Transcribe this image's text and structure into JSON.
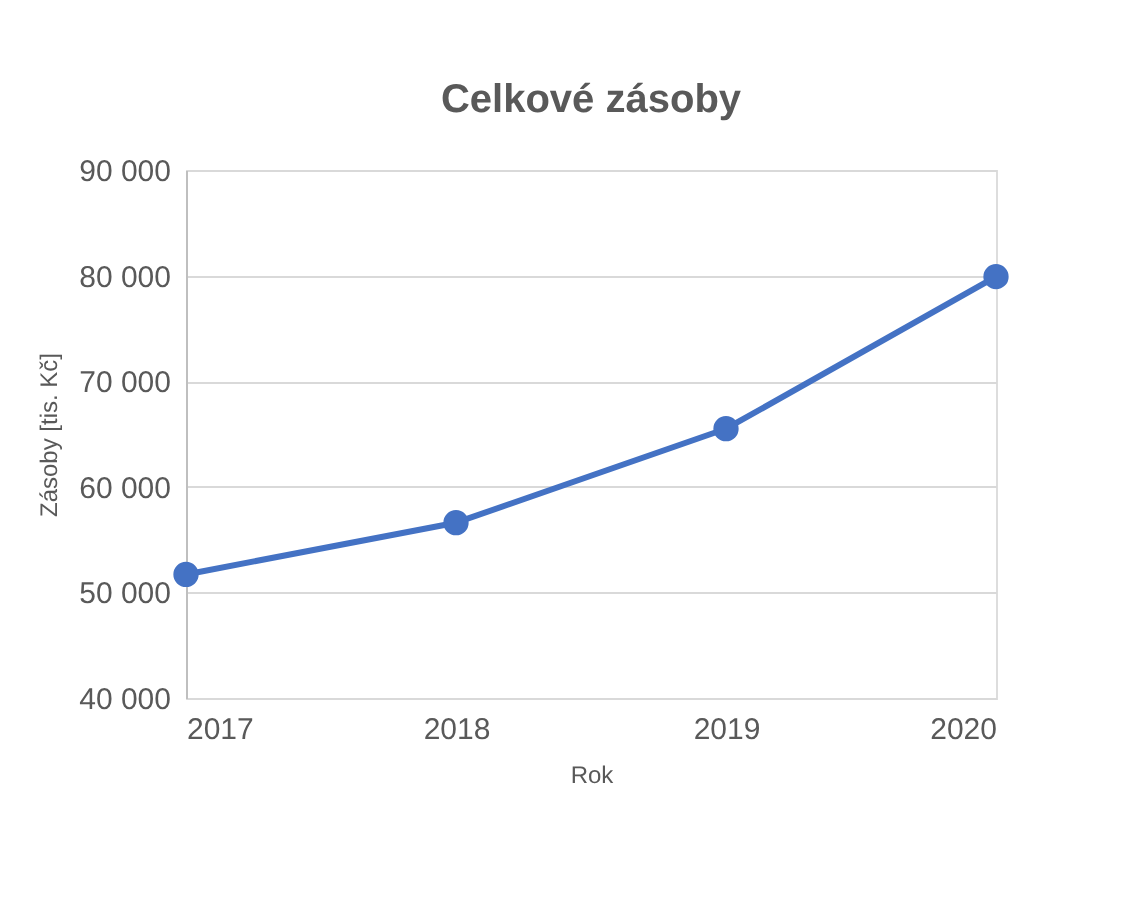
{
  "chart_data": {
    "type": "line",
    "title": "Celkové zásoby",
    "xlabel": "Rok",
    "ylabel": "Zásoby [tis. Kč]",
    "x": [
      2017,
      2018,
      2019,
      2020
    ],
    "series": [
      {
        "color": "#4472c4",
        "values": [
          51700,
          56600,
          65500,
          79900
        ]
      }
    ],
    "xlim": [
      2017,
      2020
    ],
    "xticks": [
      2017,
      2018,
      2019,
      2020
    ],
    "ylim": [
      40000,
      90000
    ],
    "yticks": [
      {
        "value": 40000,
        "label": "40 000"
      },
      {
        "value": 50000,
        "label": "50 000"
      },
      {
        "value": 60000,
        "label": "60 000"
      },
      {
        "value": 70000,
        "label": "70 000"
      },
      {
        "value": 80000,
        "label": "80 000"
      },
      {
        "value": 90000,
        "label": "90 000"
      }
    ],
    "grid": "y",
    "marker": "circle",
    "line_style": "solid",
    "legend": false
  }
}
